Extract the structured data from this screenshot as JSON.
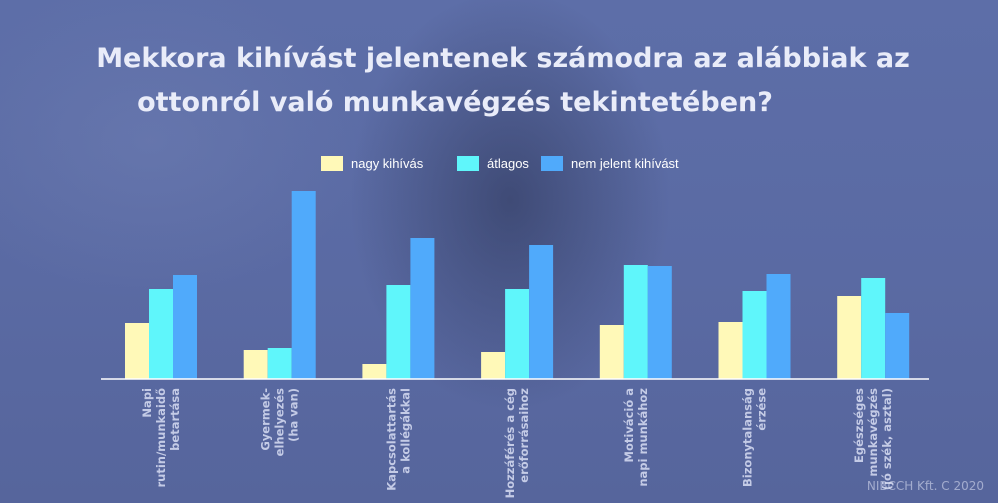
{
  "title_lines": [
    "Mekkora kihívást jelentenek számodra az alábbiak az",
    "ottonról való munkavégzés tekintetében?"
  ],
  "watermark": "NIBCCH Kft. C 2020",
  "colors": {
    "nagy kihívás": "#fff9b8",
    "átlagos": "#5ff6fb",
    "nem jelent kihívást": "#50aafb",
    "axis": "#ffffff",
    "label": "#c4cbe6",
    "title": "#e9ecf9"
  },
  "chart_data": {
    "type": "bar",
    "title": "Mekkora kihívást jelentenek számodra az alábbiak az ottonról való munkavégzés tekintetében?",
    "xlabel": "",
    "ylabel": "",
    "ylim": [
      0,
      190
    ],
    "grid": false,
    "legend_position": "top",
    "categories": [
      [
        "Napi",
        "rutin/munkaidő",
        "betartása"
      ],
      [
        "Gyermek-",
        "elhelyezés",
        "(ha van)"
      ],
      [
        "Kapcsolattartás",
        "a kollégákkal"
      ],
      [
        "Hozzáférés a cég",
        "erőforrásaihoz"
      ],
      [
        "Motiváció a",
        "napi munkához"
      ],
      [
        "Bizonytalanság",
        "érzése"
      ],
      [
        "Egészséges",
        "munkavégzés",
        "(jó szék, asztal)"
      ]
    ],
    "series": [
      {
        "name": "nagy kihívás",
        "values": [
          56,
          29,
          15,
          27,
          54,
          57,
          83
        ]
      },
      {
        "name": "átlagos",
        "values": [
          90,
          31,
          94,
          90,
          114,
          88,
          101
        ]
      },
      {
        "name": "nem jelent kihívást",
        "values": [
          104,
          188,
          141,
          134,
          113,
          105,
          66
        ]
      }
    ]
  }
}
